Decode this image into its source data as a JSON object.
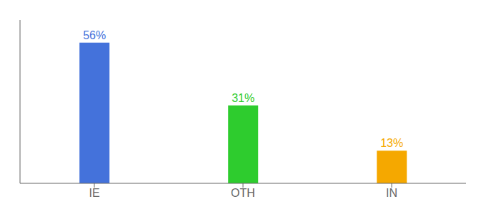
{
  "chart_data": {
    "type": "bar",
    "categories": [
      "IE",
      "OTH",
      "IN"
    ],
    "values": [
      56,
      31,
      13
    ],
    "value_labels": [
      "56%",
      "31%",
      "13%"
    ],
    "colors": [
      "#4472db",
      "#2ecc2e",
      "#f5a800"
    ],
    "ylim": [
      0,
      65
    ],
    "data_labels": true,
    "tick_labels": "x",
    "grid": false
  }
}
